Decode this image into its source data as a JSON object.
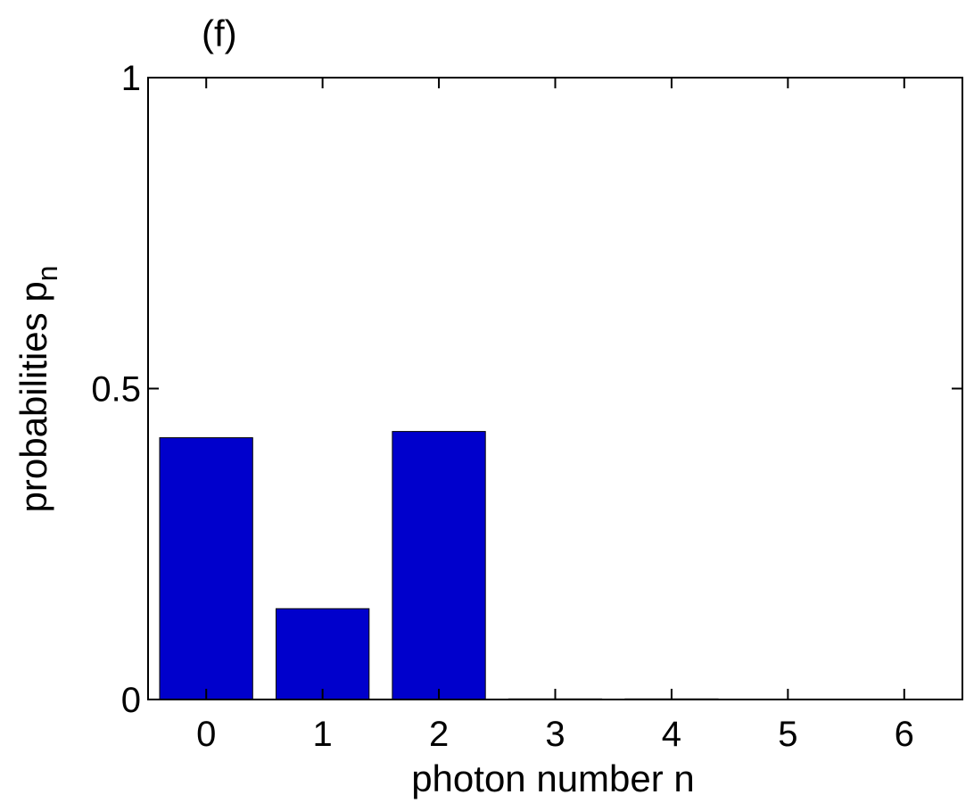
{
  "chart_data": {
    "type": "bar",
    "panel_label": "(f)",
    "categories": [
      "0",
      "1",
      "2",
      "3",
      "4",
      "5",
      "6"
    ],
    "x": [
      0,
      1,
      2,
      3,
      4,
      5,
      6
    ],
    "values": [
      0.421,
      0.146,
      0.431,
      0.001,
      0.001,
      0.0,
      0.0
    ],
    "xlabel": "photon number n",
    "ylabel_main": "probabilities p",
    "ylabel_subscript": "n",
    "xlim": [
      -0.5,
      6.5
    ],
    "ylim": [
      0,
      1
    ],
    "yticks": [
      0,
      0.5,
      1
    ],
    "ytick_labels": [
      "0",
      "0.5",
      "1"
    ],
    "xtick_labels": [
      "0",
      "1",
      "2",
      "3",
      "4",
      "5",
      "6"
    ],
    "grid": false,
    "bar_color": "#0000cc"
  }
}
